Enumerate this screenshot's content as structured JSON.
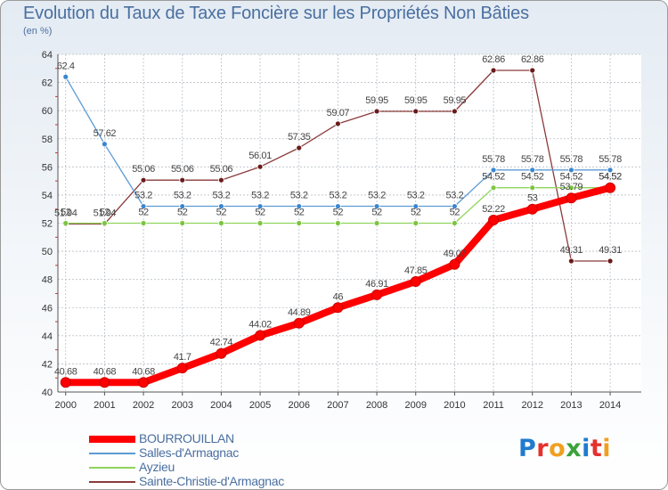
{
  "title": "Evolution du Taux de Taxe Foncière sur les Propriétés Non Bâties",
  "subtitle": "(en %)",
  "logo": {
    "text": "Proxiti",
    "letters": [
      {
        "ch": "P",
        "color": "#1f7bd0"
      },
      {
        "ch": "r",
        "color": "#e5312e"
      },
      {
        "ch": "o",
        "color": "#f0a020"
      },
      {
        "ch": "x",
        "color": "#3aa33a"
      },
      {
        "ch": "i",
        "color": "#1f7bd0"
      },
      {
        "ch": "t",
        "color": "#e5312e"
      },
      {
        "ch": "i",
        "color": "#f0a020"
      }
    ]
  },
  "chart_data": {
    "type": "line",
    "title": "Evolution du Taux de Taxe Foncière sur les Propriétés Non Bâties",
    "ylabel": "(en %)",
    "xlabel": "",
    "ylim": [
      40,
      64
    ],
    "yticks": [
      40,
      42,
      44,
      46,
      48,
      50,
      52,
      54,
      56,
      58,
      60,
      62,
      64
    ],
    "grid": true,
    "legend": "bottom-left",
    "x": [
      "2000",
      "2001",
      "2002",
      "2003",
      "2004",
      "2005",
      "2006",
      "2007",
      "2008",
      "2009",
      "2010",
      "2011",
      "2012",
      "2013",
      "2014"
    ],
    "series": [
      {
        "name": "BOURROUILLAN",
        "color": "#ff0000",
        "marker_color": "#ff0000",
        "values": [
          40.68,
          40.68,
          40.68,
          41.7,
          42.74,
          44.02,
          44.89,
          46,
          46.91,
          47.85,
          49.07,
          52.22,
          53,
          53.79,
          54.52
        ],
        "labels": [
          "40.68",
          "40.68",
          "40.68",
          "41.7",
          "42.74",
          "44.02",
          "44.89",
          "46",
          "46.91",
          "47.85",
          "49.07",
          "52.22",
          "53",
          "53.79",
          "54.52"
        ]
      },
      {
        "name": "Salles-d'Armagnac",
        "color": "#5b9bd5",
        "marker_color": "#3a86d0",
        "values": [
          62.4,
          57.62,
          53.2,
          53.2,
          53.2,
          53.2,
          53.2,
          53.2,
          53.2,
          53.2,
          53.2,
          55.78,
          55.78,
          55.78,
          55.78
        ],
        "labels": [
          "62.4",
          "57.62",
          "53.2",
          "53.2",
          "53.2",
          "53.2",
          "53.2",
          "53.2",
          "53.2",
          "53.2",
          "53.2",
          "55.78",
          "55.78",
          "55.78",
          "55.78"
        ]
      },
      {
        "name": "Ayzieu",
        "color": "#8fd45a",
        "marker_color": "#7cc540",
        "values": [
          52,
          52,
          52,
          52,
          52,
          52,
          52,
          52,
          52,
          52,
          52,
          54.52,
          54.52,
          54.52,
          54.52
        ],
        "labels": [
          "52",
          "52",
          "52",
          "52",
          "52",
          "52",
          "52",
          "52",
          "52",
          "52",
          "52",
          "54.52",
          "54.52",
          "54.52",
          "54.52"
        ]
      },
      {
        "name": "Sainte-Christie-d'Armagnac",
        "color": "#8b3a3a",
        "marker_color": "#6b1a1a",
        "values": [
          51.94,
          51.94,
          55.06,
          55.06,
          55.06,
          56.01,
          57.35,
          59.07,
          59.95,
          59.95,
          59.95,
          62.86,
          62.86,
          49.31,
          49.31
        ],
        "labels": [
          "51.94",
          "51.94",
          "55.06",
          "55.06",
          "55.06",
          "56.01",
          "57.35",
          "59.07",
          "59.95",
          "59.95",
          "59.95",
          "62.86",
          "62.86",
          "49.31",
          "49.31"
        ]
      }
    ]
  }
}
